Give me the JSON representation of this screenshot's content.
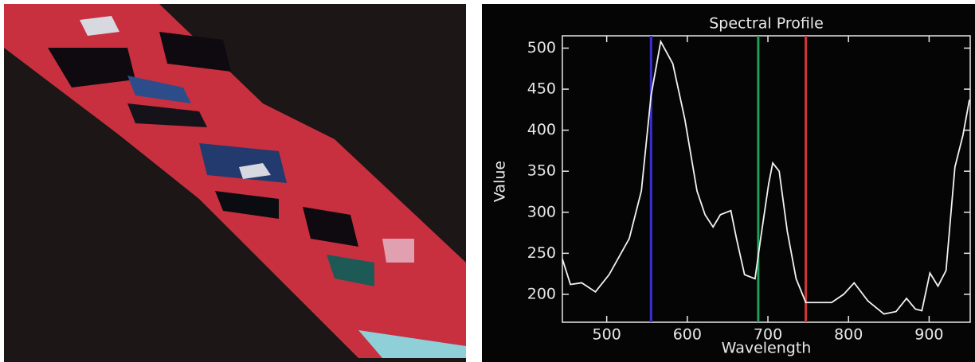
{
  "chart_data": {
    "type": "line",
    "title": "Spectral Profile",
    "x_label": "Wavelength",
    "y_label": "Value",
    "x": [
      445,
      455,
      469,
      486,
      503,
      528,
      543,
      555,
      567,
      582,
      597,
      612,
      622,
      632,
      641,
      654,
      661,
      671,
      684,
      691,
      701,
      706,
      714,
      724,
      735,
      747,
      779,
      794,
      807,
      824,
      844,
      859,
      872,
      883,
      891,
      901,
      911,
      921,
      932,
      942,
      950
    ],
    "series": [
      {
        "color": "#f2f2f2",
        "values": [
          243,
          212,
          214,
          203,
          224,
          268,
          326,
          442,
          508,
          481,
          413,
          326,
          297,
          282,
          297,
          302,
          268,
          224,
          219,
          268,
          335,
          360,
          350,
          277,
          219,
          190,
          190,
          200,
          214,
          192,
          176,
          179,
          195,
          182,
          180,
          226,
          210,
          229,
          355,
          394,
          437
        ]
      }
    ],
    "markers": [
      {
        "value": 555,
        "color": "#3b2fd0"
      },
      {
        "value": 688,
        "color": "#1fa05a"
      },
      {
        "value": 747,
        "color": "#d0343a"
      }
    ],
    "xlim": [
      445,
      951
    ],
    "ylim": [
      166,
      515
    ],
    "xticks": [
      500,
      600,
      700,
      800,
      900
    ],
    "yticks": [
      200,
      250,
      300,
      350,
      400,
      450,
      500
    ]
  }
}
